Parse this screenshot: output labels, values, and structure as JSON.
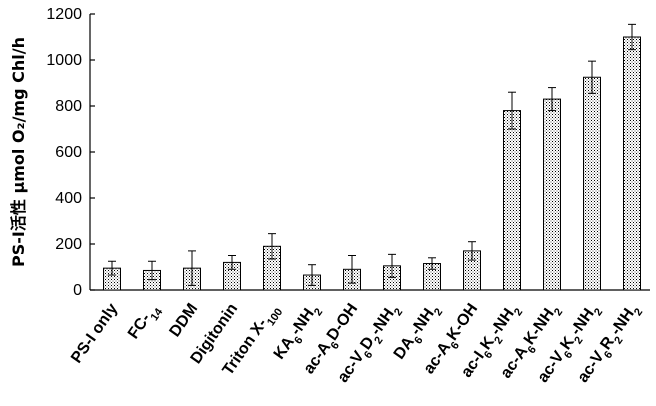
{
  "chart_data": {
    "type": "bar",
    "title": "",
    "xlabel": "",
    "ylabel": "PS-I活性 μmol O₂/mg Chl/h",
    "ylim": [
      0,
      1200
    ],
    "yticks": [
      0,
      200,
      400,
      600,
      800,
      1000,
      1200
    ],
    "grid": false,
    "legend": "none",
    "bar_fill": "stipple",
    "categories": [
      "PS-I only",
      "FC-14",
      "DDM",
      "Digitonin",
      "Triton X-100",
      "KA6-NH2",
      "ac-A6D-OH",
      "ac-V6D2-NH2",
      "DA6-NH2",
      "ac-A6K-OH",
      "ac-I6K2-NH2",
      "ac-A6K-NH2",
      "ac-V6K2-NH2",
      "ac-V6R2-NH2"
    ],
    "values": [
      95,
      85,
      95,
      120,
      190,
      65,
      90,
      105,
      115,
      170,
      780,
      830,
      925,
      1100
    ],
    "errors": [
      30,
      40,
      75,
      30,
      55,
      45,
      60,
      50,
      25,
      40,
      80,
      50,
      70,
      55
    ]
  }
}
